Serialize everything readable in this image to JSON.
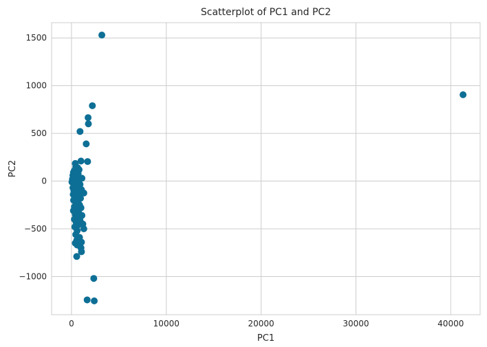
{
  "chart_data": {
    "type": "scatter",
    "title": "Scatterplot of PC1 and PC2",
    "xlabel": "PC1",
    "ylabel": "PC2",
    "xlim": [
      -2100,
      43100
    ],
    "ylim": [
      -1400,
      1660
    ],
    "xticks": [
      0,
      10000,
      20000,
      30000,
      40000
    ],
    "xtick_labels": [
      "0",
      "10000",
      "20000",
      "30000",
      "40000"
    ],
    "yticks": [
      -1000,
      -500,
      0,
      500,
      1000,
      1500
    ],
    "ytick_labels": [
      "−1000",
      "−500",
      "0",
      "500",
      "1000",
      "1500"
    ],
    "grid": true,
    "legend": "none",
    "colors": {
      "points": "#0e6f96",
      "grid": "#cccccc",
      "frame": "#cccccc",
      "background": "#ffffff"
    },
    "points": [
      [
        3200,
        1530
      ],
      [
        41300,
        905
      ],
      [
        2200,
        790
      ],
      [
        1750,
        665
      ],
      [
        1780,
        600
      ],
      [
        900,
        520
      ],
      [
        1550,
        390
      ],
      [
        1000,
        210
      ],
      [
        1700,
        205
      ],
      [
        400,
        185
      ],
      [
        450,
        150
      ],
      [
        650,
        140
      ],
      [
        800,
        120
      ],
      [
        300,
        110
      ],
      [
        500,
        100
      ],
      [
        200,
        90
      ],
      [
        700,
        80
      ],
      [
        1100,
        30
      ],
      [
        150,
        60
      ],
      [
        350,
        45
      ],
      [
        600,
        30
      ],
      [
        100,
        20
      ],
      [
        250,
        10
      ],
      [
        450,
        0
      ],
      [
        750,
        -5
      ],
      [
        50,
        -10
      ],
      [
        200,
        -20
      ],
      [
        550,
        -25
      ],
      [
        900,
        -35
      ],
      [
        300,
        -45
      ],
      [
        650,
        -55
      ],
      [
        150,
        -70
      ],
      [
        400,
        -80
      ],
      [
        1050,
        -90
      ],
      [
        250,
        -100
      ],
      [
        500,
        -110
      ],
      [
        800,
        -120
      ],
      [
        1300,
        -125
      ],
      [
        180,
        -140
      ],
      [
        600,
        -150
      ],
      [
        350,
        -170
      ],
      [
        950,
        -180
      ],
      [
        220,
        -200
      ],
      [
        700,
        -210
      ],
      [
        450,
        -230
      ],
      [
        850,
        -250
      ],
      [
        300,
        -270
      ],
      [
        1000,
        -280
      ],
      [
        550,
        -300
      ],
      [
        200,
        -310
      ],
      [
        750,
        -330
      ],
      [
        400,
        -350
      ],
      [
        1100,
        -360
      ],
      [
        650,
        -380
      ],
      [
        300,
        -400
      ],
      [
        900,
        -410
      ],
      [
        480,
        -430
      ],
      [
        1200,
        -450
      ],
      [
        700,
        -460
      ],
      [
        350,
        -480
      ],
      [
        1300,
        -500
      ],
      [
        600,
        -520
      ],
      [
        450,
        -560
      ],
      [
        850,
        -590
      ],
      [
        550,
        -620
      ],
      [
        400,
        -650
      ],
      [
        750,
        -640
      ],
      [
        1050,
        -640
      ],
      [
        600,
        -670
      ],
      [
        1000,
        -700
      ],
      [
        1050,
        -740
      ],
      [
        550,
        -790
      ],
      [
        2350,
        -1020
      ],
      [
        1650,
        -1245
      ],
      [
        2400,
        -1255
      ]
    ]
  }
}
